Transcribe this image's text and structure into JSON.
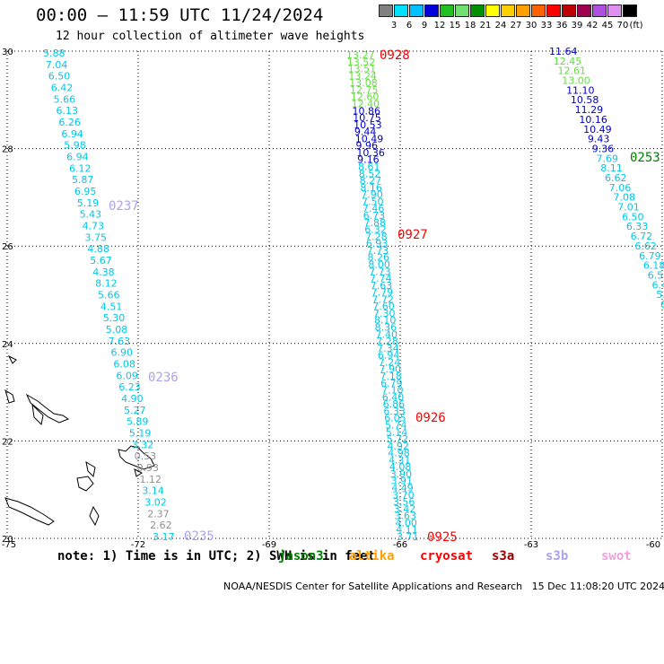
{
  "header": {
    "title": "00:00 — 11:59 UTC 11/24/2024",
    "subtitle": "12 hour collection of altimeter wave heights"
  },
  "legend": {
    "unit_label": "(ft)",
    "ticks": [
      "3",
      "6",
      "9",
      "12",
      "15",
      "18",
      "21",
      "24",
      "27",
      "30",
      "33",
      "36",
      "39",
      "42",
      "45",
      "70"
    ],
    "colors": [
      "#808080",
      "#00e0ff",
      "#00c0ff",
      "#0000dd",
      "#20c020",
      "#70e070",
      "#009000",
      "#ffff00",
      "#ffd000",
      "#ffa000",
      "#ff6000",
      "#ff0000",
      "#c00000",
      "#a00050",
      "#b050e0",
      "#e090f0",
      "#000000"
    ]
  },
  "map": {
    "lon_ticks": [
      "-75",
      "-72",
      "-69",
      "-66",
      "-63",
      "-60"
    ],
    "lat_ticks": [
      "30",
      "28",
      "26",
      "24",
      "22",
      "20"
    ],
    "lon_range": [
      -75,
      -60
    ],
    "lat_range": [
      20,
      30
    ],
    "grid": "dotted"
  },
  "pass_labels": [
    {
      "text": "0928",
      "color": "#ff0000"
    },
    {
      "text": "0927",
      "color": "#ff0000"
    },
    {
      "text": "0926",
      "color": "#ff0000"
    },
    {
      "text": "0925",
      "color": "#ff0000"
    },
    {
      "text": "0237",
      "color": "#b0a0f0"
    },
    {
      "text": "0236",
      "color": "#b0a0f0"
    },
    {
      "text": "0235",
      "color": "#b0a0f0"
    },
    {
      "text": "0253",
      "color": "#008000"
    }
  ],
  "tracks": {
    "west": [
      {
        "text": "5.88",
        "color": "#00c8e8"
      },
      {
        "text": "7.04",
        "color": "#00c8e8"
      },
      {
        "text": "6.50",
        "color": "#00c8e8"
      },
      {
        "text": "6.42",
        "color": "#00c8e8"
      },
      {
        "text": "5.66",
        "color": "#00c8e8"
      },
      {
        "text": "6.13",
        "color": "#00c8e8"
      },
      {
        "text": "6.26",
        "color": "#00c8e8"
      },
      {
        "text": "6.94",
        "color": "#00c8e8"
      },
      {
        "text": "5.98",
        "color": "#00c8e8"
      },
      {
        "text": "6.94",
        "color": "#00c8e8"
      },
      {
        "text": "6.12",
        "color": "#00c8e8"
      },
      {
        "text": "5.87",
        "color": "#00c8e8"
      },
      {
        "text": "6.95",
        "color": "#00c8e8"
      },
      {
        "text": "5.19",
        "color": "#00c8e8"
      },
      {
        "text": "5.43",
        "color": "#00c8e8"
      },
      {
        "text": "4.73",
        "color": "#00c8e8"
      },
      {
        "text": "3.75",
        "color": "#00c8e8"
      },
      {
        "text": "4.88",
        "color": "#00c8e8"
      },
      {
        "text": "5.67",
        "color": "#00c8e8"
      },
      {
        "text": "4.38",
        "color": "#00c8e8"
      },
      {
        "text": "8.12",
        "color": "#00c8e8"
      },
      {
        "text": "5.66",
        "color": "#00c8e8"
      },
      {
        "text": "4.51",
        "color": "#00c8e8"
      },
      {
        "text": "5.30",
        "color": "#00c8e8"
      },
      {
        "text": "5.08",
        "color": "#00c8e8"
      },
      {
        "text": "7.63",
        "color": "#00c8e8"
      },
      {
        "text": "6.90",
        "color": "#00c8e8"
      },
      {
        "text": "6.08",
        "color": "#00c8e8"
      },
      {
        "text": "6.09",
        "color": "#00c8e8"
      },
      {
        "text": "6.23",
        "color": "#00c8e8"
      },
      {
        "text": "4.90",
        "color": "#00c8e8"
      },
      {
        "text": "5.27",
        "color": "#00c8e8"
      },
      {
        "text": "5.89",
        "color": "#00c8e8"
      },
      {
        "text": "5.19",
        "color": "#00c8e8"
      },
      {
        "text": "3.32",
        "color": "#00c8e8"
      },
      {
        "text": "0.53",
        "color": "#909090"
      },
      {
        "text": "0.93",
        "color": "#909090"
      },
      {
        "text": "1.12",
        "color": "#909090"
      },
      {
        "text": "3.14",
        "color": "#00c8e8"
      },
      {
        "text": "3.02",
        "color": "#00c8e8"
      },
      {
        "text": "2.37",
        "color": "#909090"
      },
      {
        "text": "2.62",
        "color": "#909090"
      },
      {
        "text": "3.17",
        "color": "#00c8e8"
      }
    ],
    "middle": [
      {
        "text": "13.27",
        "color": "#66dd44"
      },
      {
        "text": "13.52",
        "color": "#66dd44"
      },
      {
        "text": "13.51",
        "color": "#66dd44"
      },
      {
        "text": "13.24",
        "color": "#66dd44"
      },
      {
        "text": "13.08",
        "color": "#66dd44"
      },
      {
        "text": "12.75",
        "color": "#66dd44"
      },
      {
        "text": "12.60",
        "color": "#66dd44"
      },
      {
        "text": "12.40",
        "color": "#66dd44"
      },
      {
        "text": "10.86",
        "color": "#0000cc"
      },
      {
        "text": "10.75",
        "color": "#0000cc"
      },
      {
        "text": "10.53",
        "color": "#0000cc"
      },
      {
        "text": "9.44",
        "color": "#0000cc"
      },
      {
        "text": "10.49",
        "color": "#0000cc"
      },
      {
        "text": "9.96",
        "color": "#0000cc"
      },
      {
        "text": "10.36",
        "color": "#0000cc"
      },
      {
        "text": "9.16",
        "color": "#0000cc"
      },
      {
        "text": "8.61",
        "color": "#00c8e8"
      },
      {
        "text": "8.52",
        "color": "#00c8e8"
      },
      {
        "text": "8.27",
        "color": "#00c8e8"
      },
      {
        "text": "8.16",
        "color": "#00c8e8"
      },
      {
        "text": "7.90",
        "color": "#00c8e8"
      },
      {
        "text": "7.50",
        "color": "#00c8e8"
      },
      {
        "text": "7.46",
        "color": "#00c8e8"
      },
      {
        "text": "6.73",
        "color": "#00c8e8"
      },
      {
        "text": "7.88",
        "color": "#00c8e8"
      },
      {
        "text": "6.32",
        "color": "#00c8e8"
      },
      {
        "text": "7.28",
        "color": "#00c8e8"
      },
      {
        "text": "6.93",
        "color": "#00c8e8"
      },
      {
        "text": "7.73",
        "color": "#00c8e8"
      },
      {
        "text": "8.26",
        "color": "#00c8e8"
      },
      {
        "text": "8.00",
        "color": "#00c8e8"
      },
      {
        "text": "7.73",
        "color": "#00c8e8"
      },
      {
        "text": "7.74",
        "color": "#00c8e8"
      },
      {
        "text": "7.63",
        "color": "#00c8e8"
      },
      {
        "text": "7.79",
        "color": "#00c8e8"
      },
      {
        "text": "7.72",
        "color": "#00c8e8"
      },
      {
        "text": "7.60",
        "color": "#00c8e8"
      },
      {
        "text": "7.30",
        "color": "#00c8e8"
      },
      {
        "text": "8.10",
        "color": "#00c8e8"
      },
      {
        "text": "8.36",
        "color": "#00c8e8"
      },
      {
        "text": "7.40",
        "color": "#00c8e8"
      },
      {
        "text": "7.28",
        "color": "#00c8e8"
      },
      {
        "text": "7.34",
        "color": "#00c8e8"
      },
      {
        "text": "6.94",
        "color": "#00c8e8"
      },
      {
        "text": "7.24",
        "color": "#00c8e8"
      },
      {
        "text": "7.90",
        "color": "#00c8e8"
      },
      {
        "text": "7.18",
        "color": "#00c8e8"
      },
      {
        "text": "6.79",
        "color": "#00c8e8"
      },
      {
        "text": "7.10",
        "color": "#00c8e8"
      },
      {
        "text": "6.40",
        "color": "#00c8e8"
      },
      {
        "text": "6.86",
        "color": "#00c8e8"
      },
      {
        "text": "6.33",
        "color": "#00c8e8"
      },
      {
        "text": "6.05",
        "color": "#00c8e8"
      },
      {
        "text": "5.74",
        "color": "#00c8e8"
      },
      {
        "text": "5.14",
        "color": "#00c8e8"
      },
      {
        "text": "5.72",
        "color": "#00c8e8"
      },
      {
        "text": "4.92",
        "color": "#00c8e8"
      },
      {
        "text": "4.98",
        "color": "#00c8e8"
      },
      {
        "text": "4.31",
        "color": "#00c8e8"
      },
      {
        "text": "4.08",
        "color": "#00c8e8"
      },
      {
        "text": "3.90",
        "color": "#00c8e8"
      },
      {
        "text": "3.91",
        "color": "#00c8e8"
      },
      {
        "text": "4.49",
        "color": "#00c8e8"
      },
      {
        "text": "3.70",
        "color": "#00c8e8"
      },
      {
        "text": "3.56",
        "color": "#00c8e8"
      },
      {
        "text": "3.42",
        "color": "#00c8e8"
      },
      {
        "text": "3.63",
        "color": "#00c8e8"
      },
      {
        "text": "4.00",
        "color": "#00c8e8"
      },
      {
        "text": "4.11",
        "color": "#00c8e8"
      },
      {
        "text": "3.71",
        "color": "#00c8e8"
      }
    ],
    "east": [
      {
        "text": "11.64",
        "color": "#0000cc"
      },
      {
        "text": "12.45",
        "color": "#66dd44"
      },
      {
        "text": "12.61",
        "color": "#66dd44"
      },
      {
        "text": "13.00",
        "color": "#66dd44"
      },
      {
        "text": "11.10",
        "color": "#0000cc"
      },
      {
        "text": "10.58",
        "color": "#0000cc"
      },
      {
        "text": "11.29",
        "color": "#0000cc"
      },
      {
        "text": "10.16",
        "color": "#0000cc"
      },
      {
        "text": "10.49",
        "color": "#0000cc"
      },
      {
        "text": "9.43",
        "color": "#0000cc"
      },
      {
        "text": "9.36",
        "color": "#0000cc"
      },
      {
        "text": "7.69",
        "color": "#00c8e8"
      },
      {
        "text": "8.11",
        "color": "#00c8e8"
      },
      {
        "text": "6.62",
        "color": "#00c8e8"
      },
      {
        "text": "7.06",
        "color": "#00c8e8"
      },
      {
        "text": "7.08",
        "color": "#00c8e8"
      },
      {
        "text": "7.01",
        "color": "#00c8e8"
      },
      {
        "text": "6.50",
        "color": "#00c8e8"
      },
      {
        "text": "6.33",
        "color": "#00c8e8"
      },
      {
        "text": "6.72",
        "color": "#00c8e8"
      },
      {
        "text": "6.62",
        "color": "#00c8e8"
      },
      {
        "text": "6.79",
        "color": "#00c8e8"
      },
      {
        "text": "6.18",
        "color": "#00c8e8"
      },
      {
        "text": "6.5",
        "color": "#00c8e8"
      },
      {
        "text": "6.4",
        "color": "#00c8e8"
      },
      {
        "text": "5.",
        "color": "#00c8e8"
      },
      {
        "text": "6",
        "color": "#00c8e8"
      }
    ]
  },
  "note": {
    "prefix": "note: 1) Time is in UTC; 2) SWH is in feet",
    "missions": [
      {
        "name": "jason3",
        "color": "#008000"
      },
      {
        "name": "altika",
        "color": "#ffa000"
      },
      {
        "name": "cryosat",
        "color": "#ff0000"
      },
      {
        "name": "s3a",
        "color": "#a00000"
      },
      {
        "name": "s3b",
        "color": "#b0a0f0"
      },
      {
        "name": "swot",
        "color": "#f0a0e0"
      }
    ]
  },
  "footer": {
    "credit": "NOAA/NESDIS Center for Satellite Applications and Research",
    "timestamp": "15 Dec 11:08:20 UTC 2024"
  }
}
